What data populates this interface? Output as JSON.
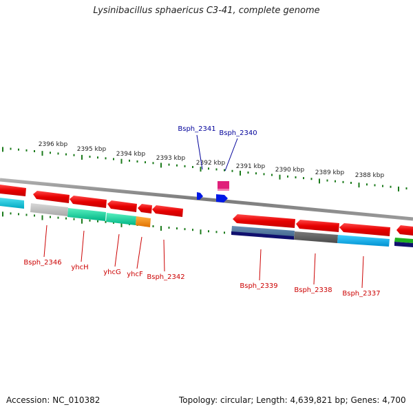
{
  "title": "Lysinibacillus sphaericus C3-41, complete genome",
  "footer": {
    "accession": "Accession: NC_010382",
    "summary": "Topology: circular; Length: 4,639,821 bp; Genes: 4,700"
  },
  "colors": {
    "backbone": "#8c8c8c",
    "tick": "#1a7a1a",
    "top_label": "#00009a",
    "bottom_label": "#cc0000"
  },
  "scale": {
    "unit": "kbp",
    "ticks": [
      {
        "label": "2396 kbp"
      },
      {
        "label": "2395 kbp"
      },
      {
        "label": "2394 kbp"
      },
      {
        "label": "2393 kbp"
      },
      {
        "label": "2392 kbp"
      },
      {
        "label": "2391 kbp"
      },
      {
        "label": "2390 kbp"
      },
      {
        "label": "2389 kbp"
      },
      {
        "label": "2388 kbp"
      }
    ]
  },
  "top_genes": [
    {
      "name": "Bsph_2341"
    },
    {
      "name": "Bsph_2340"
    }
  ],
  "bottom_genes": [
    {
      "name": "Bsph_2346"
    },
    {
      "name": "yhcH"
    },
    {
      "name": "yhcG"
    },
    {
      "name": "yhcF"
    },
    {
      "name": "Bsph_2342"
    },
    {
      "name": "Bsph_2339"
    },
    {
      "name": "Bsph_2338"
    },
    {
      "name": "Bsph_2337"
    }
  ]
}
